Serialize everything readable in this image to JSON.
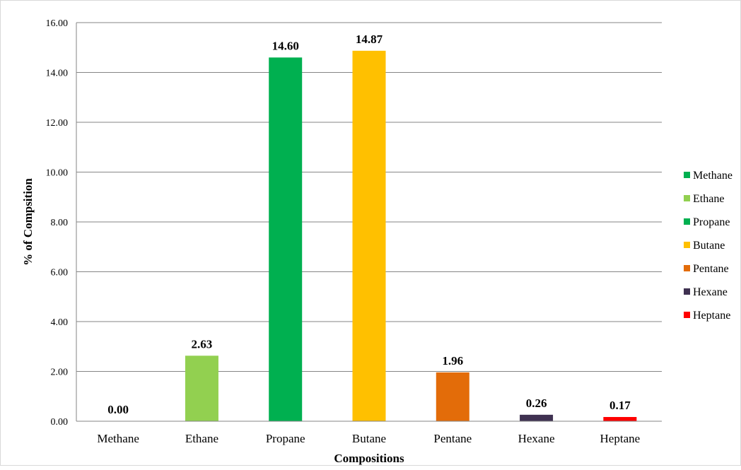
{
  "chart_data": {
    "type": "bar",
    "title": "",
    "xlabel": "Compositions",
    "ylabel": "% of Compsition",
    "categories": [
      "Methane",
      "Ethane",
      "Propane",
      "Butane",
      "Pentane",
      "Hexane",
      "Heptane"
    ],
    "values": [
      0.0,
      2.63,
      14.6,
      14.87,
      1.96,
      0.26,
      0.17
    ],
    "data_labels": [
      "0.00",
      "2.63",
      "14.60",
      "14.87",
      "1.96",
      "0.26",
      "0.17"
    ],
    "colors": [
      "#00B050",
      "#92D050",
      "#00B050",
      "#FFC000",
      "#E36C09",
      "#3F3151",
      "#FF0000"
    ],
    "ylim": [
      0,
      16
    ],
    "yticks": [
      "0.00",
      "2.00",
      "4.00",
      "6.00",
      "8.00",
      "10.00",
      "12.00",
      "14.00",
      "16.00"
    ],
    "grid": true,
    "legend": {
      "position": "right",
      "entries": [
        "Methane",
        "Ethane",
        "Propane",
        "Butane",
        "Pentane",
        "Hexane",
        "Heptane"
      ]
    }
  }
}
